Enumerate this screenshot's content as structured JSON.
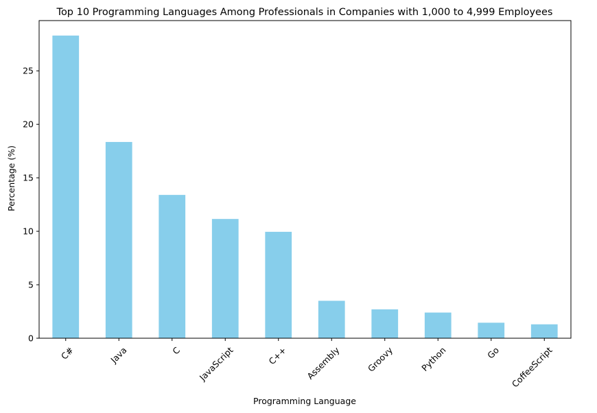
{
  "chart_data": {
    "type": "bar",
    "title": "Top 10 Programming Languages Among Professionals in Companies with 1,000 to 4,999 Employees",
    "xlabel": "Programming Language",
    "ylabel": "Percentage (%)",
    "categories": [
      "C#",
      "Java",
      "C",
      "JavaScript",
      "C++",
      "Assembly",
      "Groovy",
      "Python",
      "Go",
      "CoffeeScript"
    ],
    "values": [
      28.3,
      18.35,
      13.4,
      11.15,
      9.95,
      3.5,
      2.7,
      2.4,
      1.45,
      1.3
    ],
    "ylim": [
      0,
      29.7
    ],
    "yticks": [
      0,
      5,
      10,
      15,
      20,
      25
    ],
    "grid": false,
    "bar_color": "#87ceeb"
  }
}
